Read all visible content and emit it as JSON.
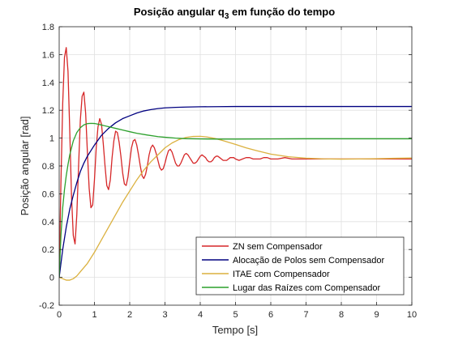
{
  "chart_data": {
    "type": "line",
    "title_main": "Posição angular q",
    "title_sub": "3",
    "title_rest": " em função do tempo",
    "xlabel": "Tempo [s]",
    "ylabel": "Posição angular [rad]",
    "xlim": [
      0,
      10
    ],
    "ylim": [
      -0.2,
      1.8
    ],
    "xticks": [
      0,
      1,
      2,
      3,
      4,
      5,
      6,
      7,
      8,
      9,
      10
    ],
    "yticks": [
      -0.2,
      0,
      0.2,
      0.4,
      0.6,
      0.8,
      1,
      1.2,
      1.4,
      1.6,
      1.8
    ],
    "xtick_labels": [
      "0",
      "1",
      "2",
      "3",
      "4",
      "5",
      "6",
      "7",
      "8",
      "9",
      "10"
    ],
    "ytick_labels": [
      "-0.2",
      "0",
      "0.2",
      "0.4",
      "0.6",
      "0.8",
      "1",
      "1.2",
      "1.4",
      "1.6",
      "1.8"
    ],
    "grid": true,
    "legend_position": "bottom-right",
    "series": [
      {
        "name": "ZN sem Compensador",
        "color": "#d62728",
        "x": [
          0,
          0.05,
          0.1,
          0.15,
          0.2,
          0.25,
          0.3,
          0.35,
          0.4,
          0.45,
          0.5,
          0.55,
          0.6,
          0.65,
          0.7,
          0.75,
          0.8,
          0.85,
          0.9,
          0.95,
          1.0,
          1.05,
          1.1,
          1.15,
          1.2,
          1.25,
          1.3,
          1.35,
          1.4,
          1.45,
          1.5,
          1.55,
          1.6,
          1.65,
          1.7,
          1.75,
          1.8,
          1.85,
          1.9,
          1.95,
          2.0,
          2.05,
          2.1,
          2.15,
          2.2,
          2.25,
          2.3,
          2.35,
          2.4,
          2.45,
          2.5,
          2.55,
          2.6,
          2.65,
          2.7,
          2.75,
          2.8,
          2.85,
          2.9,
          2.95,
          3.0,
          3.05,
          3.1,
          3.15,
          3.2,
          3.25,
          3.3,
          3.35,
          3.4,
          3.45,
          3.5,
          3.55,
          3.6,
          3.65,
          3.7,
          3.75,
          3.8,
          3.85,
          3.9,
          3.95,
          4.0,
          4.05,
          4.1,
          4.15,
          4.2,
          4.25,
          4.3,
          4.35,
          4.4,
          4.45,
          4.5,
          4.55,
          4.6,
          4.65,
          4.7,
          4.75,
          4.8,
          4.85,
          4.9,
          4.95,
          5.0,
          5.1,
          5.2,
          5.3,
          5.4,
          5.5,
          5.6,
          5.7,
          5.8,
          5.9,
          6.0,
          6.2,
          6.4,
          6.6,
          6.8,
          7.0,
          7.5,
          8.0,
          8.5,
          9.0,
          9.5,
          10.0
        ],
        "y": [
          0,
          0.68,
          1.25,
          1.58,
          1.65,
          1.48,
          1.05,
          0.58,
          0.3,
          0.24,
          0.45,
          0.8,
          1.13,
          1.3,
          1.33,
          1.18,
          0.9,
          0.64,
          0.5,
          0.52,
          0.7,
          0.93,
          1.08,
          1.14,
          1.1,
          0.96,
          0.8,
          0.66,
          0.63,
          0.7,
          0.86,
          0.98,
          1.05,
          1.04,
          0.97,
          0.87,
          0.75,
          0.67,
          0.66,
          0.72,
          0.83,
          0.93,
          0.98,
          0.99,
          0.95,
          0.88,
          0.8,
          0.73,
          0.71,
          0.74,
          0.8,
          0.88,
          0.93,
          0.95,
          0.93,
          0.89,
          0.84,
          0.79,
          0.77,
          0.78,
          0.82,
          0.87,
          0.91,
          0.92,
          0.9,
          0.86,
          0.82,
          0.8,
          0.8,
          0.82,
          0.85,
          0.88,
          0.89,
          0.88,
          0.86,
          0.84,
          0.82,
          0.82,
          0.83,
          0.85,
          0.87,
          0.88,
          0.87,
          0.86,
          0.84,
          0.83,
          0.83,
          0.84,
          0.86,
          0.87,
          0.87,
          0.86,
          0.85,
          0.84,
          0.84,
          0.84,
          0.85,
          0.86,
          0.86,
          0.86,
          0.85,
          0.84,
          0.85,
          0.86,
          0.86,
          0.85,
          0.85,
          0.85,
          0.86,
          0.86,
          0.85,
          0.85,
          0.86,
          0.85,
          0.85,
          0.85,
          0.85,
          0.85,
          0.85,
          0.85,
          0.85,
          0.85
        ]
      },
      {
        "name": "Alocação de Polos sem Compensador",
        "color": "#000080",
        "x": [
          0,
          0.1,
          0.2,
          0.3,
          0.4,
          0.5,
          0.6,
          0.7,
          0.8,
          0.9,
          1.0,
          1.2,
          1.4,
          1.6,
          1.8,
          2.0,
          2.2,
          2.4,
          2.6,
          2.8,
          3.0,
          3.3,
          3.6,
          4.0,
          4.5,
          5.0,
          5.5,
          6.0,
          7.0,
          8.0,
          9.0,
          10.0
        ],
        "y": [
          0,
          0.2,
          0.36,
          0.49,
          0.59,
          0.68,
          0.76,
          0.82,
          0.87,
          0.91,
          0.95,
          1.02,
          1.07,
          1.11,
          1.14,
          1.16,
          1.18,
          1.195,
          1.205,
          1.212,
          1.217,
          1.221,
          1.223,
          1.225,
          1.226,
          1.227,
          1.227,
          1.227,
          1.227,
          1.227,
          1.227,
          1.227
        ]
      },
      {
        "name": "ITAE com Compensador",
        "color": "#dbb13f",
        "x": [
          0,
          0.1,
          0.2,
          0.3,
          0.4,
          0.5,
          0.6,
          0.8,
          1.0,
          1.2,
          1.4,
          1.6,
          1.8,
          2.0,
          2.2,
          2.4,
          2.6,
          2.8,
          3.0,
          3.2,
          3.4,
          3.6,
          3.8,
          4.0,
          4.2,
          4.4,
          4.6,
          4.8,
          5.0,
          5.3,
          5.6,
          6.0,
          6.5,
          7.0,
          7.5,
          8.0,
          8.5,
          9.0,
          9.5,
          10.0
        ],
        "y": [
          0,
          -0.01,
          -0.02,
          -0.02,
          -0.01,
          0.01,
          0.04,
          0.1,
          0.18,
          0.27,
          0.36,
          0.45,
          0.54,
          0.62,
          0.7,
          0.77,
          0.83,
          0.88,
          0.93,
          0.965,
          0.99,
          1.005,
          1.012,
          1.013,
          1.008,
          0.998,
          0.985,
          0.97,
          0.955,
          0.93,
          0.91,
          0.885,
          0.866,
          0.856,
          0.851,
          0.849,
          0.85,
          0.852,
          0.855,
          0.857
        ]
      },
      {
        "name": "Lugar das Raízes com Compensador",
        "color": "#2ca02c",
        "x": [
          0,
          0.05,
          0.1,
          0.15,
          0.2,
          0.25,
          0.3,
          0.35,
          0.4,
          0.5,
          0.6,
          0.7,
          0.8,
          0.9,
          1.0,
          1.1,
          1.2,
          1.4,
          1.6,
          1.8,
          2.0,
          2.2,
          2.5,
          2.8,
          3.0,
          3.3,
          3.6,
          4.0,
          4.5,
          5.0,
          6.0,
          7.0,
          8.0,
          9.0,
          10.0
        ],
        "y": [
          0,
          0.3,
          0.5,
          0.63,
          0.73,
          0.81,
          0.88,
          0.93,
          0.98,
          1.04,
          1.075,
          1.095,
          1.104,
          1.106,
          1.105,
          1.1,
          1.094,
          1.082,
          1.07,
          1.058,
          1.046,
          1.035,
          1.022,
          1.011,
          1.006,
          1.0,
          0.996,
          0.994,
          0.993,
          0.993,
          0.994,
          0.995,
          0.995,
          0.995,
          0.995
        ]
      }
    ]
  }
}
